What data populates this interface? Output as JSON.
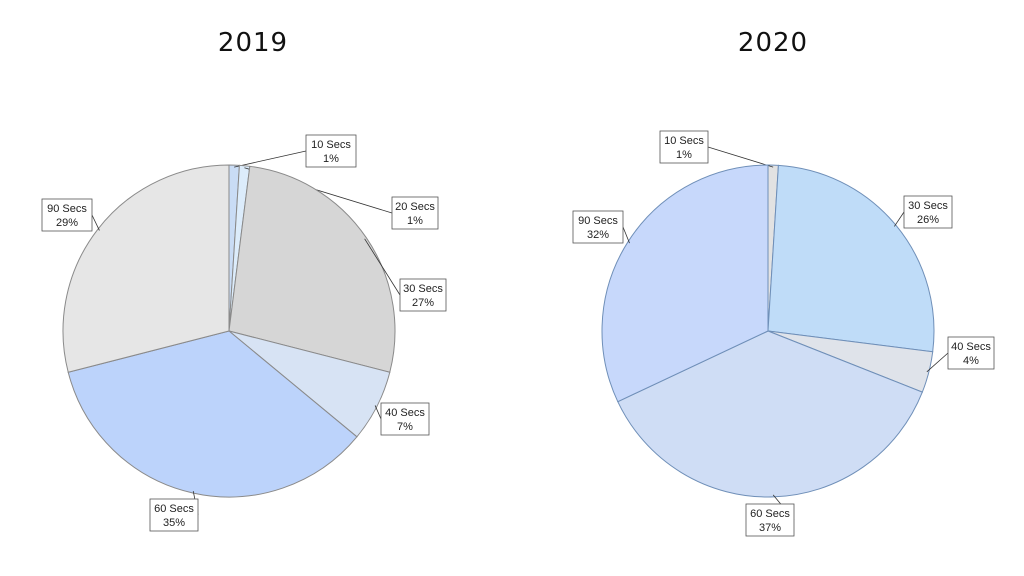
{
  "chart_data": [
    {
      "type": "pie",
      "title": "2019",
      "slices": [
        {
          "label": "10 Secs",
          "percent": "1%",
          "value": 1,
          "color": "#c9dcf5"
        },
        {
          "label": "20 Secs",
          "percent": "1%",
          "value": 1,
          "color": "#dcecfb"
        },
        {
          "label": "30 Secs",
          "percent": "27%",
          "value": 27,
          "color": "#d6d6d6"
        },
        {
          "label": "40 Secs",
          "percent": "7%",
          "value": 7,
          "color": "#d7e3f4"
        },
        {
          "label": "60 Secs",
          "percent": "35%",
          "value": 35,
          "color": "#bcd3fb"
        },
        {
          "label": "90 Secs",
          "percent": "29%",
          "value": 29,
          "color": "#e6e6e6"
        }
      ]
    },
    {
      "type": "pie",
      "title": "2020",
      "slices": [
        {
          "label": "10 Secs",
          "percent": "1%",
          "value": 1,
          "color": "#e2e2e2"
        },
        {
          "label": "30 Secs",
          "percent": "26%",
          "value": 26,
          "color": "#bfdcf8"
        },
        {
          "label": "40 Secs",
          "percent": "4%",
          "value": 4,
          "color": "#dfe3ea"
        },
        {
          "label": "60 Secs",
          "percent": "37%",
          "value": 37,
          "color": "#cfddf5"
        },
        {
          "label": "90 Secs",
          "percent": "32%",
          "value": 32,
          "color": "#c7d8fb"
        }
      ]
    }
  ]
}
